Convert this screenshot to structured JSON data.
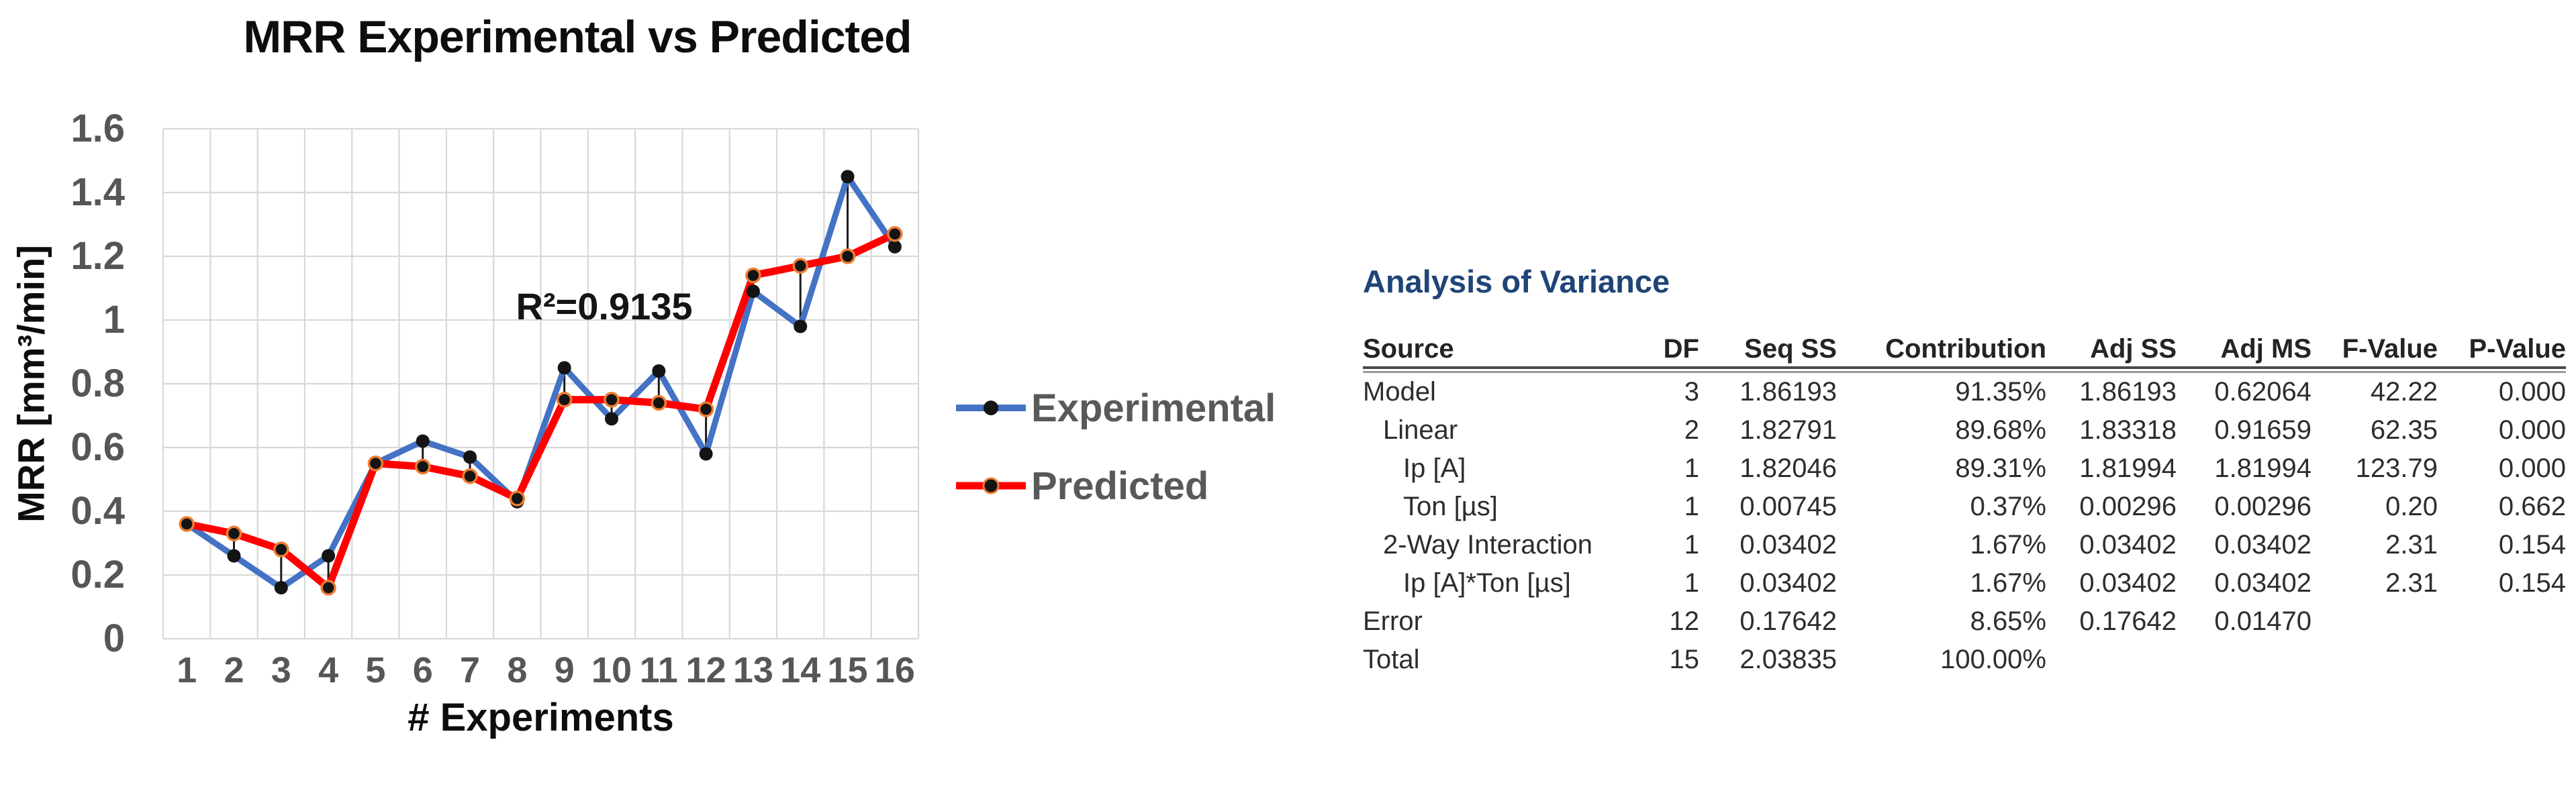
{
  "chart_data": {
    "type": "line",
    "title": "MRR Experimental vs Predicted",
    "xlabel": "# Experiments",
    "ylabel": "MRR [mm³/min]",
    "annotation": "R²=0.9135",
    "x": [
      1,
      2,
      3,
      4,
      5,
      6,
      7,
      8,
      9,
      10,
      11,
      12,
      13,
      14,
      15,
      16
    ],
    "x_tick_labels": [
      "1",
      "2",
      "3",
      "4",
      "5",
      "6",
      "7",
      "8",
      "9",
      "10",
      "11",
      "12",
      "13",
      "14",
      "15",
      "16"
    ],
    "y_ticks": [
      0,
      0.2,
      0.4,
      0.6,
      0.8,
      1.0,
      1.2,
      1.4,
      1.6
    ],
    "y_tick_labels": [
      "0",
      "0.2",
      "0.4",
      "0.6",
      "0.8",
      "1",
      "1.2",
      "1.4",
      "1.6"
    ],
    "ylim": [
      0,
      1.6
    ],
    "grid": true,
    "legend_position": "right-of-plot",
    "series": [
      {
        "name": "Experimental",
        "color": "#4472C4",
        "marker": "black-dot",
        "values": [
          0.36,
          0.26,
          0.16,
          0.26,
          0.55,
          0.62,
          0.57,
          0.43,
          0.85,
          0.69,
          0.84,
          0.58,
          1.09,
          0.98,
          1.45,
          1.23
        ]
      },
      {
        "name": "Predicted",
        "color": "#FF0000",
        "marker": "black-dot-orange-ring",
        "values": [
          0.36,
          0.33,
          0.28,
          0.16,
          0.55,
          0.54,
          0.51,
          0.44,
          0.75,
          0.75,
          0.74,
          0.72,
          1.14,
          1.17,
          1.2,
          1.27
        ]
      }
    ],
    "connectors": "vertical black leader line joins the two series at every x"
  },
  "anova": {
    "heading": "Analysis of Variance",
    "columns": [
      "Source",
      "DF",
      "Seq SS",
      "Contribution",
      "Adj SS",
      "Adj MS",
      "F-Value",
      "P-Value"
    ],
    "rows": [
      {
        "label": "Model",
        "indent": 0,
        "values": [
          "3",
          "1.86193",
          "91.35%",
          "1.86193",
          "0.62064",
          "42.22",
          "0.000"
        ]
      },
      {
        "label": "Linear",
        "indent": 1,
        "values": [
          "2",
          "1.82791",
          "89.68%",
          "1.83318",
          "0.91659",
          "62.35",
          "0.000"
        ]
      },
      {
        "label": "Ip [A]",
        "indent": 2,
        "values": [
          "1",
          "1.82046",
          "89.31%",
          "1.81994",
          "1.81994",
          "123.79",
          "0.000"
        ]
      },
      {
        "label": "Ton [µs]",
        "indent": 2,
        "values": [
          "1",
          "0.00745",
          "0.37%",
          "0.00296",
          "0.00296",
          "0.20",
          "0.662"
        ]
      },
      {
        "label": "2-Way Interaction",
        "indent": 1,
        "values": [
          "1",
          "0.03402",
          "1.67%",
          "0.03402",
          "0.03402",
          "2.31",
          "0.154"
        ]
      },
      {
        "label": "Ip [A]*Ton [µs]",
        "indent": 2,
        "values": [
          "1",
          "0.03402",
          "1.67%",
          "0.03402",
          "0.03402",
          "2.31",
          "0.154"
        ]
      },
      {
        "label": "Error",
        "indent": 0,
        "values": [
          "12",
          "0.17642",
          "8.65%",
          "0.17642",
          "0.01470",
          "",
          ""
        ]
      },
      {
        "label": "Total",
        "indent": 0,
        "values": [
          "15",
          "2.03835",
          "100.00%",
          "",
          "",
          "",
          ""
        ]
      }
    ]
  },
  "colors": {
    "experimental_line": "#4472C4",
    "predicted_line": "#FF0000",
    "marker_fill": "#141414",
    "predicted_marker_ring": "#ED7D31",
    "gridline": "#D8D8D8",
    "connector": "#1a1a1a",
    "tick_label": "#565656",
    "legend_text": "#595959",
    "anova_heading": "#1F4477",
    "table_text": "#2d2d2d"
  }
}
